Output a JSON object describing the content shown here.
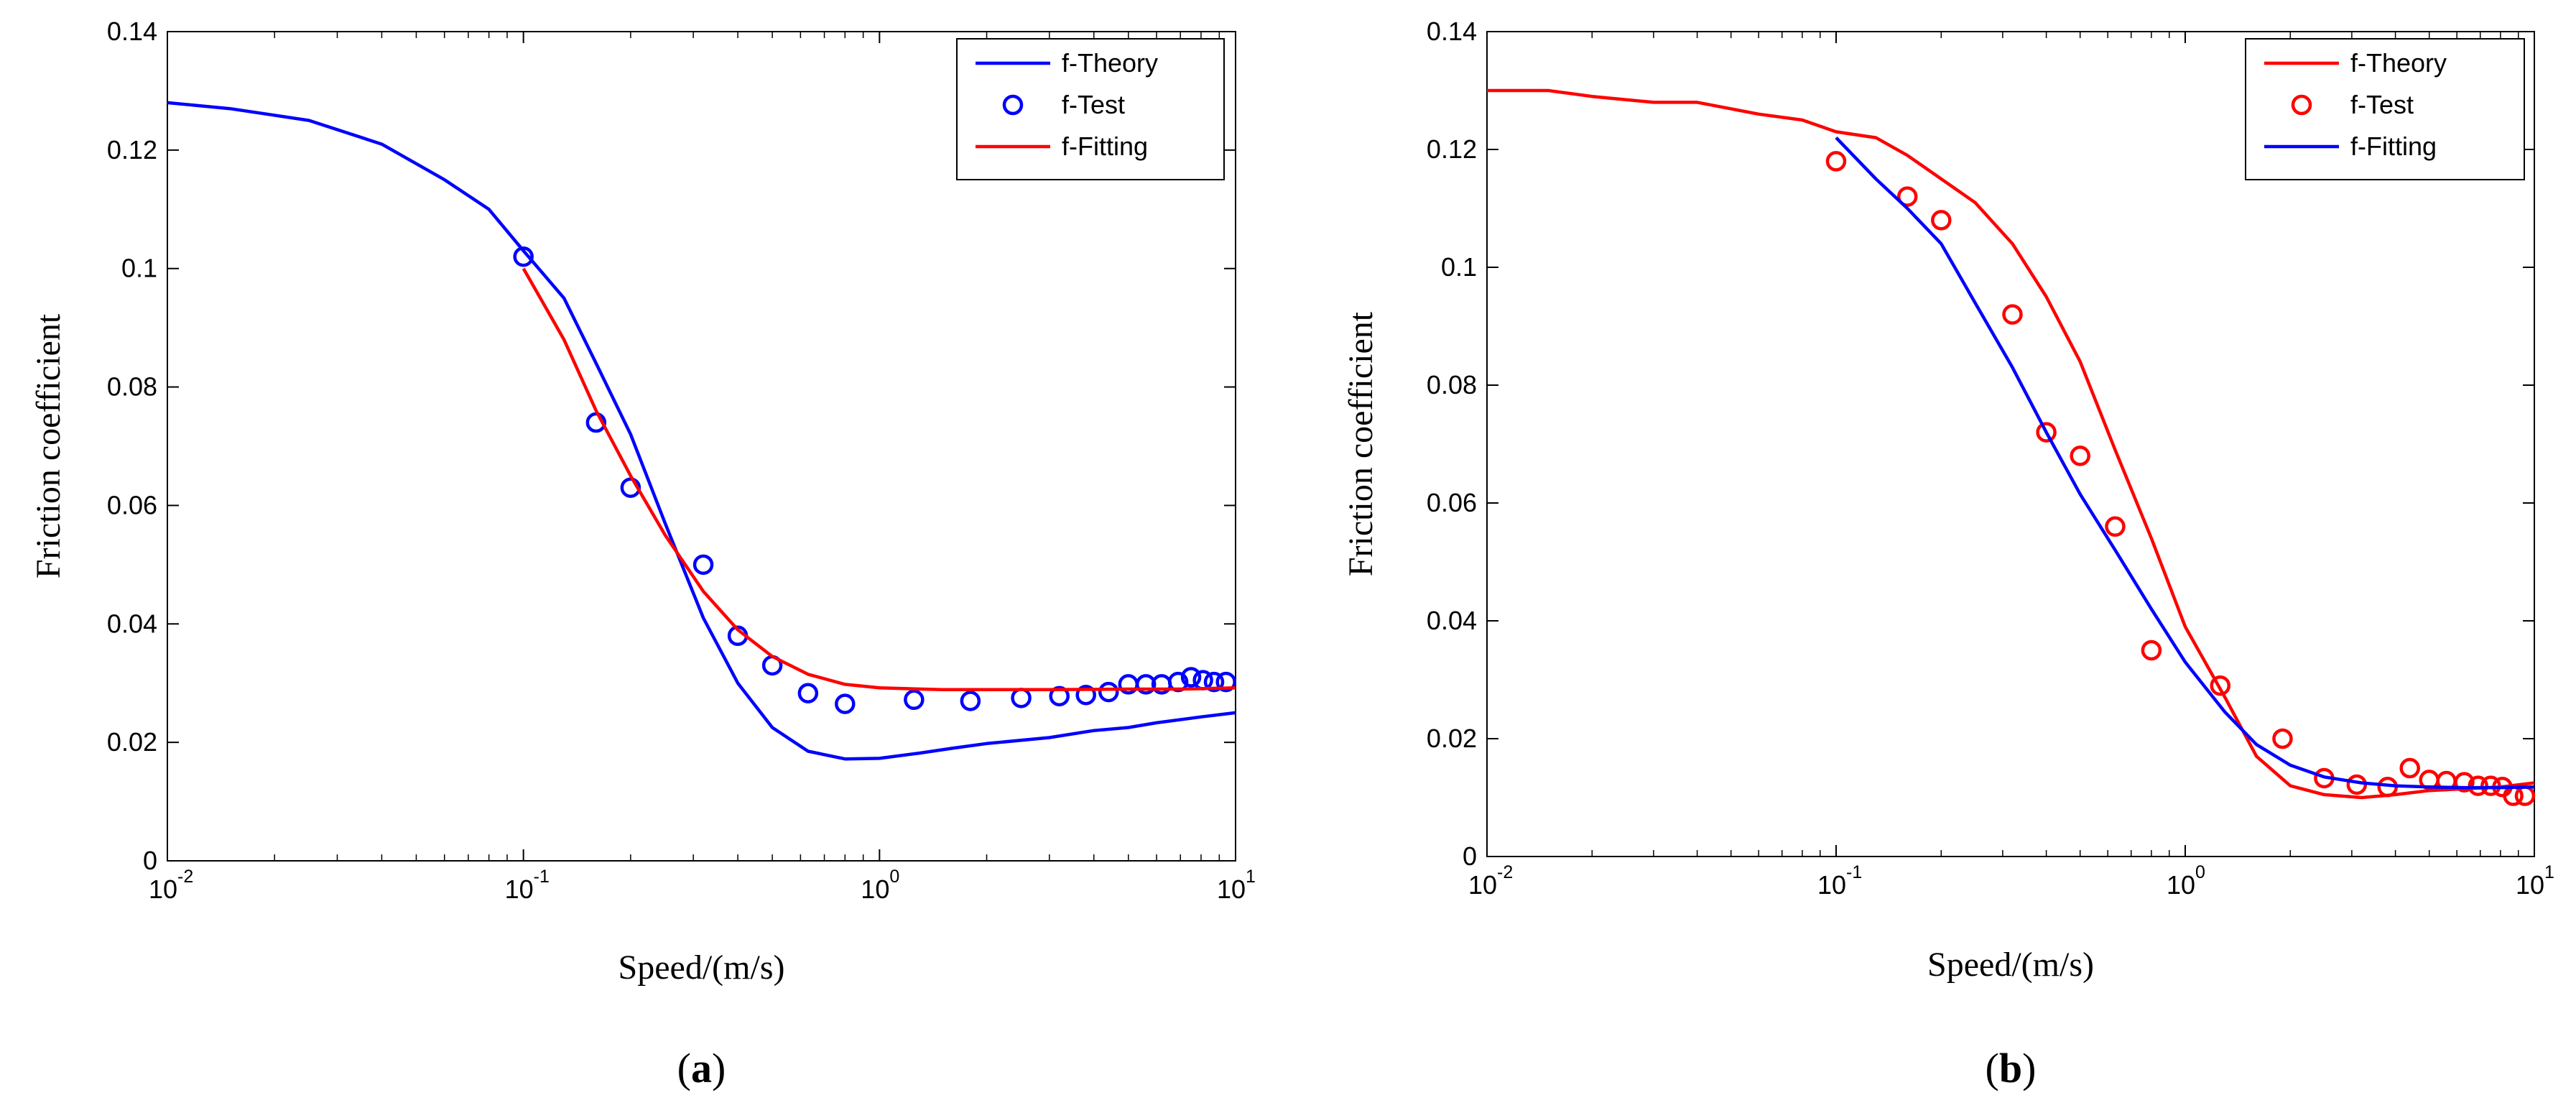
{
  "chart_data": [
    {
      "type": "line",
      "panel_label": "(a)",
      "panel_letter": "a",
      "xlabel": "Speed/(m/s)",
      "ylabel": "Friction coefficient",
      "xscale": "log",
      "xlim": [
        0.01,
        10
      ],
      "ylim": [
        0,
        0.14
      ],
      "yticks": [
        "0",
        "0.02",
        "0.04",
        "0.06",
        "0.08",
        "0.1",
        "0.12",
        "0.14"
      ],
      "xticks": [
        {
          "base": "10",
          "exp": "-2"
        },
        {
          "base": "10",
          "exp": "-1"
        },
        {
          "base": "10",
          "exp": "0"
        },
        {
          "base": "10",
          "exp": "1"
        }
      ],
      "legend_position": "top-right",
      "series": [
        {
          "name": "f-Theory",
          "style": "line",
          "color": "#0000ff",
          "x": [
            0.01,
            0.015,
            0.025,
            0.04,
            0.06,
            0.08,
            0.1,
            0.13,
            0.16,
            0.2,
            0.25,
            0.32,
            0.4,
            0.5,
            0.63,
            0.8,
            1.0,
            1.3,
            1.6,
            2.0,
            3.0,
            4.0,
            5.0,
            6.0,
            8.0,
            10.0
          ],
          "y": [
            0.128,
            0.127,
            0.125,
            0.121,
            0.115,
            0.11,
            0.103,
            0.095,
            0.084,
            0.072,
            0.057,
            0.041,
            0.03,
            0.0225,
            0.0185,
            0.0172,
            0.0173,
            0.0182,
            0.019,
            0.0198,
            0.0208,
            0.022,
            0.0225,
            0.0233,
            0.0243,
            0.025
          ]
        },
        {
          "name": "f-Test",
          "style": "markers",
          "color": "#0000ff",
          "x": [
            0.1,
            0.16,
            0.2,
            0.32,
            0.4,
            0.5,
            0.63,
            0.8,
            1.25,
            1.8,
            2.5,
            3.2,
            3.8,
            4.4,
            5.0,
            5.6,
            6.2,
            6.9,
            7.5,
            8.1,
            8.7,
            9.4
          ],
          "y": [
            0.102,
            0.074,
            0.063,
            0.05,
            0.038,
            0.033,
            0.0283,
            0.0265,
            0.0272,
            0.027,
            0.0275,
            0.0278,
            0.028,
            0.0285,
            0.0298,
            0.0298,
            0.0298,
            0.0302,
            0.031,
            0.0305,
            0.0302,
            0.0302
          ]
        },
        {
          "name": "f-Fitting",
          "style": "line",
          "color": "#ff0000",
          "x": [
            0.1,
            0.13,
            0.16,
            0.2,
            0.25,
            0.32,
            0.4,
            0.5,
            0.63,
            0.8,
            1.0,
            1.5,
            2.0,
            3.0,
            5.0,
            7.0,
            10.0
          ],
          "y": [
            0.1,
            0.088,
            0.076,
            0.065,
            0.055,
            0.0455,
            0.039,
            0.0345,
            0.0315,
            0.0298,
            0.0292,
            0.0289,
            0.0289,
            0.0289,
            0.029,
            0.029,
            0.0292
          ]
        }
      ]
    },
    {
      "type": "line",
      "panel_label": "(b)",
      "panel_letter": "b",
      "xlabel": "Speed/(m/s)",
      "ylabel": "Friction coefficient",
      "xscale": "log",
      "xlim": [
        0.01,
        10
      ],
      "ylim": [
        0,
        0.14
      ],
      "yticks": [
        "0",
        "0.02",
        "0.04",
        "0.06",
        "0.08",
        "0.1",
        "0.12",
        "0.14"
      ],
      "xticks": [
        {
          "base": "10",
          "exp": "-2"
        },
        {
          "base": "10",
          "exp": "-1"
        },
        {
          "base": "10",
          "exp": "0"
        },
        {
          "base": "10",
          "exp": "1"
        }
      ],
      "legend_position": "top-right",
      "series": [
        {
          "name": "f-Theory",
          "style": "line",
          "color": "#ff0000",
          "x": [
            0.01,
            0.015,
            0.02,
            0.03,
            0.04,
            0.06,
            0.08,
            0.1,
            0.13,
            0.16,
            0.2,
            0.25,
            0.32,
            0.4,
            0.5,
            0.63,
            0.8,
            1.0,
            1.3,
            1.6,
            2.0,
            2.5,
            3.2,
            4.0,
            5.0,
            6.3,
            8.0,
            10.0
          ],
          "y": [
            0.13,
            0.13,
            0.129,
            0.128,
            0.128,
            0.126,
            0.125,
            0.123,
            0.122,
            0.119,
            0.115,
            0.111,
            0.104,
            0.095,
            0.084,
            0.069,
            0.054,
            0.039,
            0.027,
            0.017,
            0.012,
            0.0105,
            0.01,
            0.0105,
            0.0112,
            0.0115,
            0.0118,
            0.0125
          ]
        },
        {
          "name": "f-Test",
          "style": "markers",
          "color": "#ff0000",
          "x": [
            0.1,
            0.16,
            0.2,
            0.32,
            0.4,
            0.5,
            0.63,
            0.8,
            1.26,
            1.9,
            2.5,
            3.1,
            3.8,
            4.4,
            5.0,
            5.6,
            6.3,
            6.9,
            7.5,
            8.1,
            8.7,
            9.4
          ],
          "y": [
            0.118,
            0.112,
            0.108,
            0.092,
            0.072,
            0.068,
            0.056,
            0.035,
            0.029,
            0.02,
            0.0133,
            0.0122,
            0.0118,
            0.015,
            0.013,
            0.0128,
            0.0126,
            0.012,
            0.012,
            0.0118,
            0.0103,
            0.0103
          ]
        },
        {
          "name": "f-Fitting",
          "style": "line",
          "color": "#0000ff",
          "x": [
            0.1,
            0.13,
            0.16,
            0.2,
            0.25,
            0.32,
            0.4,
            0.5,
            0.63,
            0.8,
            1.0,
            1.3,
            1.6,
            2.0,
            2.5,
            3.2,
            4.0,
            5.0,
            6.3,
            8.0,
            10.0
          ],
          "y": [
            0.122,
            0.115,
            0.11,
            0.104,
            0.094,
            0.083,
            0.072,
            0.0615,
            0.052,
            0.042,
            0.033,
            0.0245,
            0.019,
            0.0155,
            0.0135,
            0.0125,
            0.012,
            0.0118,
            0.0117,
            0.0117,
            0.0118
          ]
        }
      ]
    }
  ]
}
